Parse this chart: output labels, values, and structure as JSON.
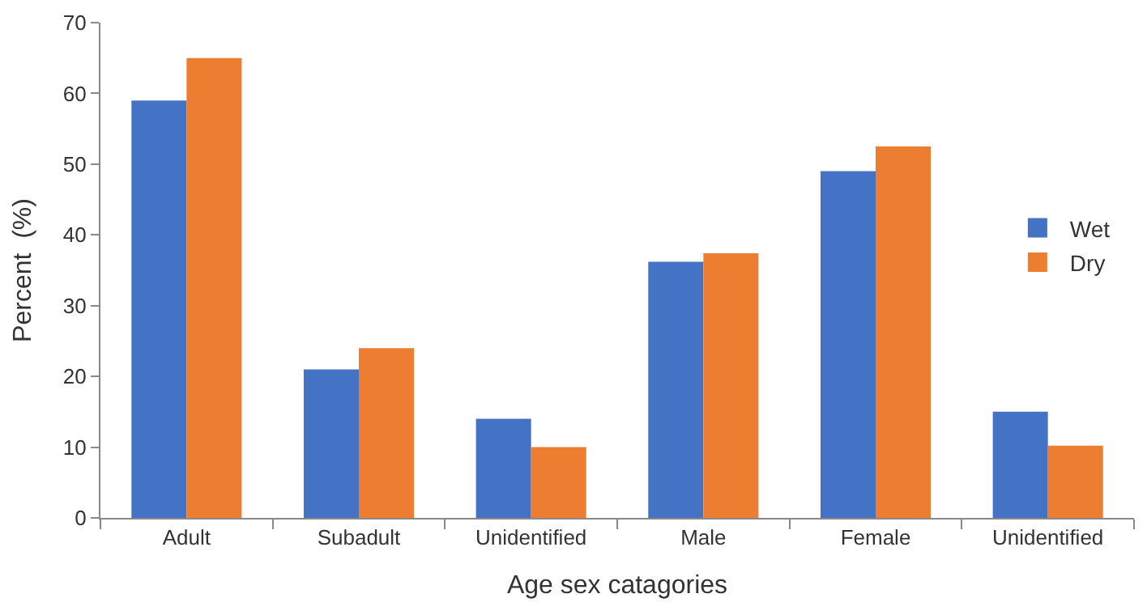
{
  "chart_data": {
    "type": "bar",
    "xlabel": "Age sex catagories",
    "ylabel": "Percent  (%)",
    "categories": [
      "Adult",
      "Subadult",
      "Unidentified",
      "Male",
      "Female",
      "Unidentified"
    ],
    "series": [
      {
        "name": "Wet",
        "color": "#4472c4",
        "values": [
          59,
          21,
          14,
          36.2,
          49,
          15
        ]
      },
      {
        "name": "Dry",
        "color": "#ed7d31",
        "values": [
          65,
          24,
          10,
          37.4,
          52.5,
          10.2
        ]
      }
    ],
    "ylim": [
      0,
      70
    ],
    "yticks": [
      0,
      10,
      20,
      30,
      40,
      50,
      60,
      70
    ],
    "legend": "right"
  }
}
